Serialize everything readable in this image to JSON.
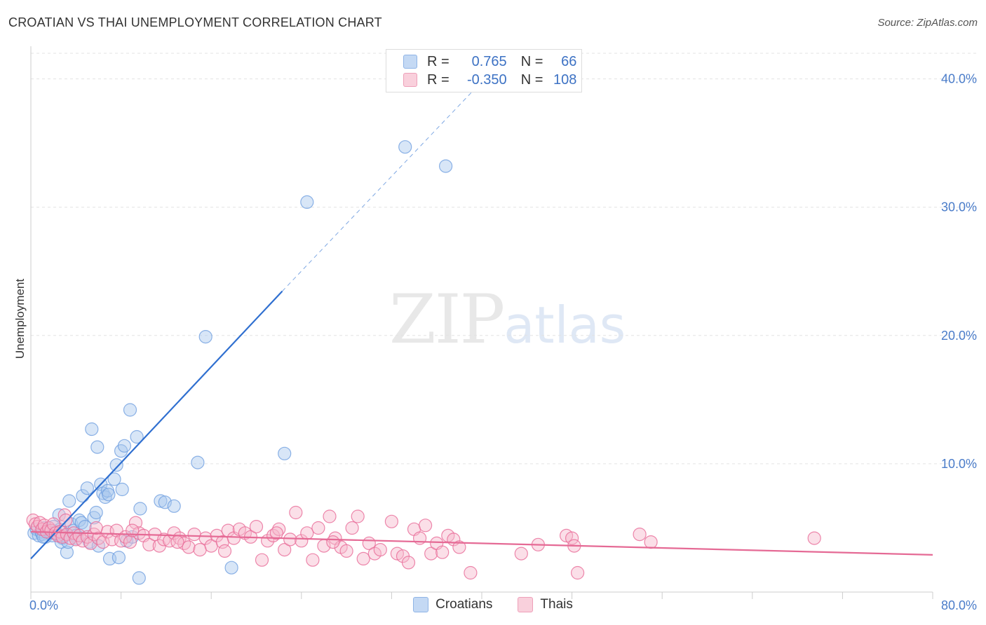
{
  "title": "CROATIAN VS THAI UNEMPLOYMENT CORRELATION CHART",
  "source": "Source: ZipAtlas.com",
  "watermark": {
    "zip": "ZIP",
    "atlas": "atlas"
  },
  "legend": {
    "rows": [
      {
        "name": "croatians",
        "r_label": "R =",
        "r_value": "0.765",
        "n_label": "N =",
        "n_value": "66",
        "color": "#a9c8ee"
      },
      {
        "name": "thais",
        "r_label": "R =",
        "r_value": "-0.350",
        "n_label": "N =",
        "n_value": "108",
        "color": "#f6b8cb"
      }
    ]
  },
  "bottom_legend": [
    {
      "label": "Croatians",
      "color": "#a9c8ee"
    },
    {
      "label": "Thais",
      "color": "#f6b8cb"
    }
  ],
  "chart_data": {
    "type": "scatter",
    "title": "CROATIAN VS THAI UNEMPLOYMENT CORRELATION CHART",
    "xlabel": "",
    "ylabel": "Unemployment",
    "xlim": [
      0,
      80
    ],
    "ylim": [
      0,
      42
    ],
    "x_tick_labels": [
      "0.0%",
      "80.0%"
    ],
    "y_ticks": [
      10,
      20,
      30,
      40
    ],
    "y_tick_labels": [
      "10.0%",
      "20.0%",
      "30.0%",
      "40.0%"
    ],
    "grid": true,
    "series": [
      {
        "name": "Croatians",
        "color": "#6f9fe0",
        "fill": "#a9c8ee",
        "points": [
          [
            0.3,
            4.6
          ],
          [
            0.5,
            4.9
          ],
          [
            0.7,
            4.4
          ],
          [
            0.9,
            4.7
          ],
          [
            1.0,
            4.5
          ],
          [
            1.2,
            5.0
          ],
          [
            1.3,
            4.3
          ],
          [
            1.5,
            4.8
          ],
          [
            1.7,
            4.6
          ],
          [
            1.9,
            4.4
          ],
          [
            2.0,
            5.1
          ],
          [
            2.2,
            4.7
          ],
          [
            2.4,
            4.5
          ],
          [
            2.6,
            4.9
          ],
          [
            2.8,
            4.2
          ],
          [
            2.5,
            6.0
          ],
          [
            2.7,
            3.9
          ],
          [
            3.0,
            4.4
          ],
          [
            3.2,
            3.1
          ],
          [
            3.3,
            3.9
          ],
          [
            3.4,
            7.1
          ],
          [
            3.6,
            5.3
          ],
          [
            3.8,
            4.8
          ],
          [
            4.0,
            4.4
          ],
          [
            4.1,
            4.2
          ],
          [
            4.3,
            5.6
          ],
          [
            4.5,
            5.4
          ],
          [
            4.6,
            7.5
          ],
          [
            4.8,
            5.1
          ],
          [
            5.0,
            8.1
          ],
          [
            5.2,
            3.9
          ],
          [
            5.4,
            12.7
          ],
          [
            5.6,
            5.8
          ],
          [
            5.8,
            6.2
          ],
          [
            5.9,
            11.3
          ],
          [
            6.0,
            3.6
          ],
          [
            6.2,
            8.4
          ],
          [
            6.4,
            7.7
          ],
          [
            6.6,
            7.4
          ],
          [
            6.8,
            7.9
          ],
          [
            7.0,
            2.6
          ],
          [
            7.4,
            8.8
          ],
          [
            7.6,
            9.9
          ],
          [
            7.8,
            2.7
          ],
          [
            8.0,
            11.0
          ],
          [
            8.3,
            11.4
          ],
          [
            8.5,
            4.0
          ],
          [
            8.8,
            14.2
          ],
          [
            9.0,
            4.3
          ],
          [
            9.4,
            12.1
          ],
          [
            9.6,
            1.1
          ],
          [
            9.7,
            6.5
          ],
          [
            11.5,
            7.1
          ],
          [
            11.9,
            7.0
          ],
          [
            12.7,
            6.7
          ],
          [
            14.8,
            10.1
          ],
          [
            15.5,
            19.9
          ],
          [
            17.8,
            1.9
          ],
          [
            22.5,
            10.8
          ],
          [
            24.5,
            30.4
          ],
          [
            33.2,
            34.7
          ],
          [
            36.8,
            33.2
          ],
          [
            8.1,
            8.0
          ],
          [
            6.9,
            7.6
          ],
          [
            2.1,
            4.6
          ],
          [
            1.1,
            4.3
          ]
        ],
        "trend": {
          "x": [
            0,
            40
          ],
          "y": [
            2.6,
            40.0
          ],
          "solid_until_x": 40,
          "dashed_from_x": 40
        }
      },
      {
        "name": "Thais",
        "color": "#e96a97",
        "fill": "#f6b8cb",
        "points": [
          [
            0.2,
            5.6
          ],
          [
            0.4,
            5.3
          ],
          [
            0.6,
            5.1
          ],
          [
            0.8,
            5.4
          ],
          [
            1.0,
            4.9
          ],
          [
            1.2,
            5.2
          ],
          [
            1.4,
            4.7
          ],
          [
            1.6,
            5.0
          ],
          [
            1.8,
            4.8
          ],
          [
            2.0,
            5.3
          ],
          [
            2.2,
            4.6
          ],
          [
            2.4,
            4.4
          ],
          [
            2.6,
            4.7
          ],
          [
            2.8,
            4.3
          ],
          [
            3.0,
            6.0
          ],
          [
            3.2,
            4.5
          ],
          [
            3.5,
            4.2
          ],
          [
            3.8,
            4.6
          ],
          [
            4.0,
            4.1
          ],
          [
            4.3,
            4.4
          ],
          [
            4.6,
            4.0
          ],
          [
            5.0,
            4.3
          ],
          [
            5.3,
            3.8
          ],
          [
            5.6,
            4.5
          ],
          [
            6.0,
            4.2
          ],
          [
            6.4,
            3.9
          ],
          [
            6.8,
            4.7
          ],
          [
            7.2,
            4.1
          ],
          [
            7.6,
            4.8
          ],
          [
            8.0,
            4.0
          ],
          [
            8.4,
            4.3
          ],
          [
            8.8,
            3.9
          ],
          [
            9.3,
            5.4
          ],
          [
            9.6,
            4.6
          ],
          [
            10.0,
            4.4
          ],
          [
            10.5,
            3.7
          ],
          [
            11.0,
            4.5
          ],
          [
            11.4,
            3.6
          ],
          [
            11.8,
            4.1
          ],
          [
            12.3,
            4.0
          ],
          [
            12.7,
            4.6
          ],
          [
            13.2,
            4.2
          ],
          [
            13.6,
            3.8
          ],
          [
            14.0,
            3.5
          ],
          [
            14.5,
            4.5
          ],
          [
            15.0,
            3.3
          ],
          [
            15.5,
            4.2
          ],
          [
            16.0,
            3.6
          ],
          [
            16.5,
            4.4
          ],
          [
            17.0,
            3.9
          ],
          [
            17.5,
            4.8
          ],
          [
            18.0,
            4.2
          ],
          [
            18.5,
            4.9
          ],
          [
            19.0,
            4.6
          ],
          [
            19.5,
            4.3
          ],
          [
            20.0,
            5.1
          ],
          [
            20.5,
            2.5
          ],
          [
            21.0,
            4.0
          ],
          [
            21.5,
            4.4
          ],
          [
            22.0,
            4.9
          ],
          [
            22.5,
            3.3
          ],
          [
            23.0,
            4.1
          ],
          [
            23.5,
            6.2
          ],
          [
            24.0,
            4.0
          ],
          [
            24.5,
            4.6
          ],
          [
            25.0,
            2.5
          ],
          [
            25.5,
            5.0
          ],
          [
            26.0,
            3.6
          ],
          [
            26.5,
            5.9
          ],
          [
            27.0,
            4.2
          ],
          [
            27.5,
            3.5
          ],
          [
            28.0,
            3.2
          ],
          [
            28.5,
            5.0
          ],
          [
            29.0,
            5.9
          ],
          [
            29.5,
            2.6
          ],
          [
            30.0,
            3.8
          ],
          [
            30.5,
            3.0
          ],
          [
            31.0,
            3.3
          ],
          [
            32.0,
            5.5
          ],
          [
            32.5,
            3.0
          ],
          [
            33.0,
            2.8
          ],
          [
            33.5,
            2.3
          ],
          [
            34.0,
            4.9
          ],
          [
            34.5,
            4.2
          ],
          [
            35.0,
            5.2
          ],
          [
            35.5,
            3.0
          ],
          [
            36.0,
            3.8
          ],
          [
            36.5,
            3.1
          ],
          [
            37.0,
            4.4
          ],
          [
            37.5,
            4.1
          ],
          [
            38.0,
            3.5
          ],
          [
            39.0,
            1.5
          ],
          [
            43.5,
            3.0
          ],
          [
            45.0,
            3.7
          ],
          [
            47.5,
            4.4
          ],
          [
            48.0,
            4.2
          ],
          [
            48.2,
            3.6
          ],
          [
            48.5,
            1.5
          ],
          [
            54.0,
            4.5
          ],
          [
            55.0,
            3.9
          ],
          [
            69.5,
            4.2
          ],
          [
            3.1,
            5.6
          ],
          [
            5.8,
            5.0
          ],
          [
            9.0,
            4.8
          ],
          [
            13.0,
            3.9
          ],
          [
            17.2,
            3.2
          ],
          [
            21.8,
            4.6
          ],
          [
            26.8,
            3.9
          ]
        ],
        "trend": {
          "x": [
            0,
            80
          ],
          "y": [
            4.7,
            2.9
          ]
        }
      }
    ]
  }
}
